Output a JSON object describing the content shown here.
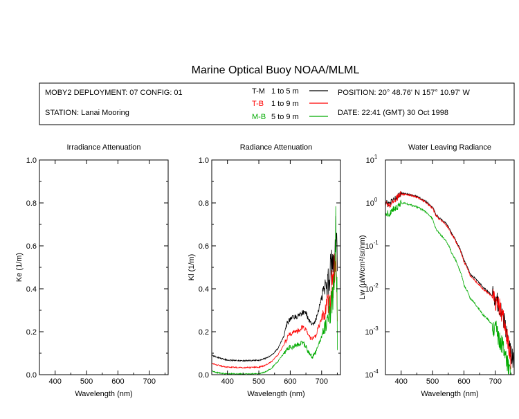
{
  "title": "Marine Optical Buoy NOAA/MLML",
  "info": {
    "deployment": "MOBY2 DEPLOYMENT: 07 CONFIG: 01",
    "station": "STATION: Lanai Mooring",
    "position": "POSITION: 20° 48.76' N   157° 10.97' W",
    "date": "DATE: 22:41 (GMT) 30 Oct 1998",
    "legend": [
      {
        "label": "T-M",
        "range": "1 to 5  m",
        "color": "#000000"
      },
      {
        "label": "T-B",
        "range": "1 to 9  m",
        "color": "#ff0000"
      },
      {
        "label": "M-B",
        "range": "5 to 9  m",
        "color": "#00aa00"
      }
    ]
  },
  "chart_data": [
    {
      "type": "line",
      "title": "Irradiance Attenuation",
      "xlabel": "Wavelength (nm)",
      "ylabel": "Ke  (1/m)",
      "xlim": [
        350,
        760
      ],
      "ylim": [
        0,
        1
      ],
      "xticks": [
        "400",
        "500",
        "600",
        "700"
      ],
      "yticks": [
        "0.0",
        "0.2",
        "0.4",
        "0.6",
        "0.8",
        "1.0"
      ],
      "series": []
    },
    {
      "type": "line",
      "title": "Radiance Attenuation",
      "xlabel": "Wavelength (nm)",
      "ylabel": "Kl  (1/m)",
      "xlim": [
        350,
        760
      ],
      "ylim": [
        0,
        1
      ],
      "xticks": [
        "400",
        "500",
        "600",
        "700"
      ],
      "yticks": [
        "0.0",
        "0.2",
        "0.4",
        "0.6",
        "0.8",
        "1.0"
      ],
      "series": [
        {
          "color": "#000000",
          "x": [
            350,
            360,
            370,
            380,
            400,
            450,
            500,
            520,
            540,
            560,
            580,
            590,
            600,
            610,
            620,
            630,
            640,
            650,
            660,
            670,
            680,
            690,
            700,
            710,
            720,
            730,
            740,
            745,
            750
          ],
          "y": [
            0.09,
            0.085,
            0.08,
            0.075,
            0.068,
            0.065,
            0.067,
            0.075,
            0.09,
            0.12,
            0.18,
            0.24,
            0.26,
            0.27,
            0.27,
            0.28,
            0.29,
            0.29,
            0.25,
            0.23,
            0.25,
            0.3,
            0.36,
            0.4,
            0.42,
            0.5,
            0.55,
            0.7,
            0.45
          ]
        },
        {
          "color": "#ff0000",
          "x": [
            350,
            360,
            380,
            400,
            450,
            500,
            520,
            540,
            560,
            580,
            590,
            600,
            610,
            620,
            630,
            640,
            650,
            660,
            670,
            680,
            690,
            700,
            710,
            720,
            730,
            740,
            745,
            750
          ],
          "y": [
            0.055,
            0.048,
            0.04,
            0.035,
            0.033,
            0.035,
            0.043,
            0.06,
            0.09,
            0.14,
            0.17,
            0.19,
            0.2,
            0.2,
            0.21,
            0.22,
            0.21,
            0.18,
            0.16,
            0.18,
            0.22,
            0.26,
            0.3,
            0.33,
            0.38,
            0.45,
            0.58,
            0.3
          ]
        },
        {
          "color": "#00aa00",
          "x": [
            350,
            360,
            380,
            400,
            450,
            500,
            520,
            540,
            560,
            580,
            590,
            600,
            610,
            620,
            630,
            640,
            650,
            660,
            670,
            680,
            690,
            700,
            710,
            720,
            730,
            740,
            745,
            750
          ],
          "y": [
            0.02,
            0.012,
            0.006,
            0.004,
            0.003,
            0.004,
            0.012,
            0.03,
            0.06,
            0.1,
            0.12,
            0.13,
            0.13,
            0.14,
            0.14,
            0.15,
            0.13,
            0.1,
            0.08,
            0.1,
            0.14,
            0.18,
            0.22,
            0.26,
            0.32,
            0.4,
            0.68,
            0.25
          ]
        }
      ]
    },
    {
      "type": "line",
      "title": "Water Leaving Radiance",
      "xlabel": "Wavelength (nm)",
      "ylabel": "Lw  (µW/cm²/sr/nm)",
      "xlim": [
        350,
        760
      ],
      "ylim": [
        0.0001,
        10
      ],
      "log_y": true,
      "xticks": [
        "400",
        "500",
        "600",
        "700"
      ],
      "yticks": [
        "10^-4",
        "10^-3",
        "10^-2",
        "10^-1",
        "10^0",
        "10^1"
      ],
      "series": [
        {
          "color": "#000000",
          "x": [
            350,
            360,
            370,
            380,
            390,
            400,
            420,
            440,
            460,
            480,
            500,
            510,
            520,
            540,
            560,
            580,
            600,
            620,
            640,
            660,
            680,
            700,
            710,
            720,
            730,
            740,
            750,
            760
          ],
          "y": [
            1.0,
            0.9,
            1.1,
            1.2,
            1.4,
            1.7,
            1.6,
            1.5,
            1.3,
            1.05,
            0.8,
            0.55,
            0.45,
            0.35,
            0.2,
            0.11,
            0.045,
            0.022,
            0.016,
            0.011,
            0.008,
            0.006,
            0.0045,
            0.003,
            0.0015,
            0.0006,
            0.0003,
            0.0002
          ]
        },
        {
          "color": "#ff0000",
          "x": [
            350,
            360,
            370,
            380,
            390,
            400,
            420,
            440,
            460,
            480,
            500,
            510,
            520,
            540,
            560,
            580,
            600,
            620,
            640,
            660,
            680,
            700,
            710,
            720,
            730,
            740,
            750
          ],
          "y": [
            0.95,
            0.85,
            1.0,
            1.15,
            1.35,
            1.6,
            1.55,
            1.45,
            1.25,
            1.0,
            0.75,
            0.52,
            0.43,
            0.33,
            0.19,
            0.1,
            0.042,
            0.02,
            0.014,
            0.01,
            0.0075,
            0.0055,
            0.004,
            0.0027,
            0.0013,
            0.0005,
            0.0002
          ]
        },
        {
          "color": "#00aa00",
          "x": [
            350,
            360,
            370,
            380,
            390,
            400,
            420,
            440,
            460,
            480,
            500,
            510,
            520,
            540,
            560,
            580,
            600,
            620,
            640,
            660,
            680,
            700,
            710,
            720,
            730,
            740,
            750
          ],
          "y": [
            0.6,
            0.55,
            0.65,
            0.75,
            0.85,
            1.0,
            0.95,
            0.85,
            0.75,
            0.6,
            0.42,
            0.25,
            0.2,
            0.14,
            0.07,
            0.035,
            0.012,
            0.006,
            0.004,
            0.0025,
            0.0018,
            0.0012,
            0.0008,
            0.0005,
            0.0003,
            0.00015,
            0.0001
          ]
        }
      ]
    }
  ]
}
